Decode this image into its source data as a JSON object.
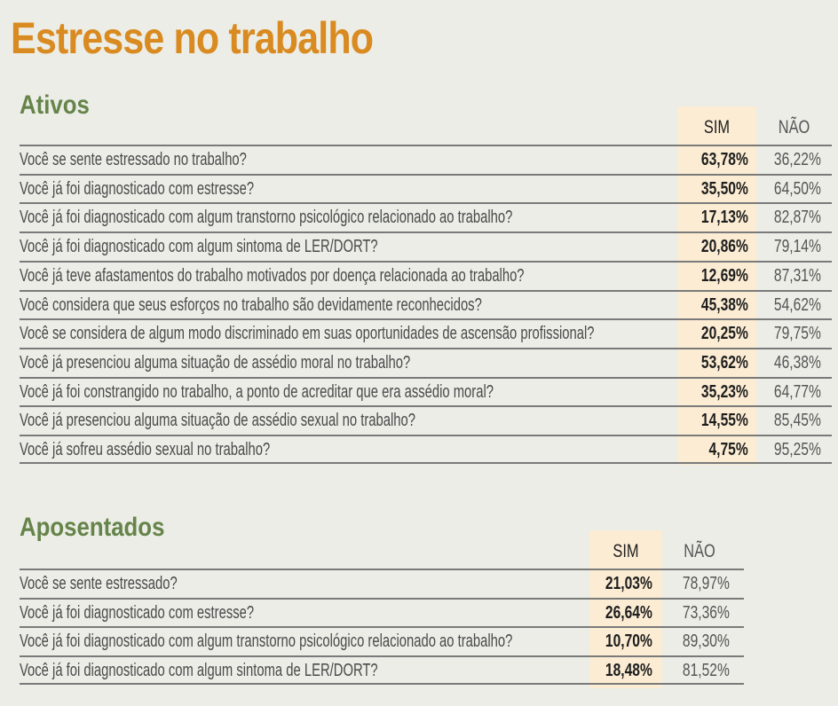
{
  "title": "Estresse no trabalho",
  "ativos": {
    "heading": "Ativos",
    "sim_label": "SIM",
    "nao_label": "NÃO",
    "rows": [
      {
        "q": "Você se sente estressado no trabalho?",
        "sim": "63,78%",
        "nao": "36,22%"
      },
      {
        "q": "Você já foi diagnosticado com estresse?",
        "sim": "35,50%",
        "nao": "64,50%"
      },
      {
        "q": "Você já foi diagnosticado com algum transtorno psicológico relacionado ao trabalho?",
        "sim": "17,13%",
        "nao": "82,87%"
      },
      {
        "q": "Você já foi diagnosticado com algum sintoma de LER/DORT?",
        "sim": "20,86%",
        "nao": "79,14%"
      },
      {
        "q": "Você já teve afastamentos do trabalho motivados por doença relacionada ao trabalho?",
        "sim": "12,69%",
        "nao": "87,31%"
      },
      {
        "q": "Você considera que seus esforços no trabalho são devidamente reconhecidos?",
        "sim": "45,38%",
        "nao": "54,62%"
      },
      {
        "q": "Você se considera de algum modo discriminado em suas oportunidades de ascensão profissional?",
        "sim": "20,25%",
        "nao": "79,75%"
      },
      {
        "q": "Você já presenciou alguma situação de assédio moral no trabalho?",
        "sim": "53,62%",
        "nao": "46,38%"
      },
      {
        "q": "Você já foi constrangido no trabalho, a ponto de acreditar que era assédio moral?",
        "sim": "35,23%",
        "nao": "64,77%"
      },
      {
        "q": "Você já presenciou alguma situação de assédio sexual no trabalho?",
        "sim": "14,55%",
        "nao": "85,45%"
      },
      {
        "q": "Você já sofreu assédio sexual no trabalho?",
        "sim": "4,75%",
        "nao": "95,25%"
      }
    ]
  },
  "aposentados": {
    "heading": "Aposentados",
    "sim_label": "SIM",
    "nao_label": "NÃO",
    "rows": [
      {
        "q": "Você se sente estressado?",
        "sim": "21,03%",
        "nao": "78,97%"
      },
      {
        "q": "Você já foi diagnosticado com estresse?",
        "sim": "26,64%",
        "nao": "73,36%"
      },
      {
        "q": "Você já foi diagnosticado com algum transtorno psicológico relacionado ao trabalho?",
        "sim": "10,70%",
        "nao": "89,30%"
      },
      {
        "q": "Você já foi diagnosticado com algum sintoma de LER/DORT?",
        "sim": "18,48%",
        "nao": "81,52%"
      }
    ]
  }
}
